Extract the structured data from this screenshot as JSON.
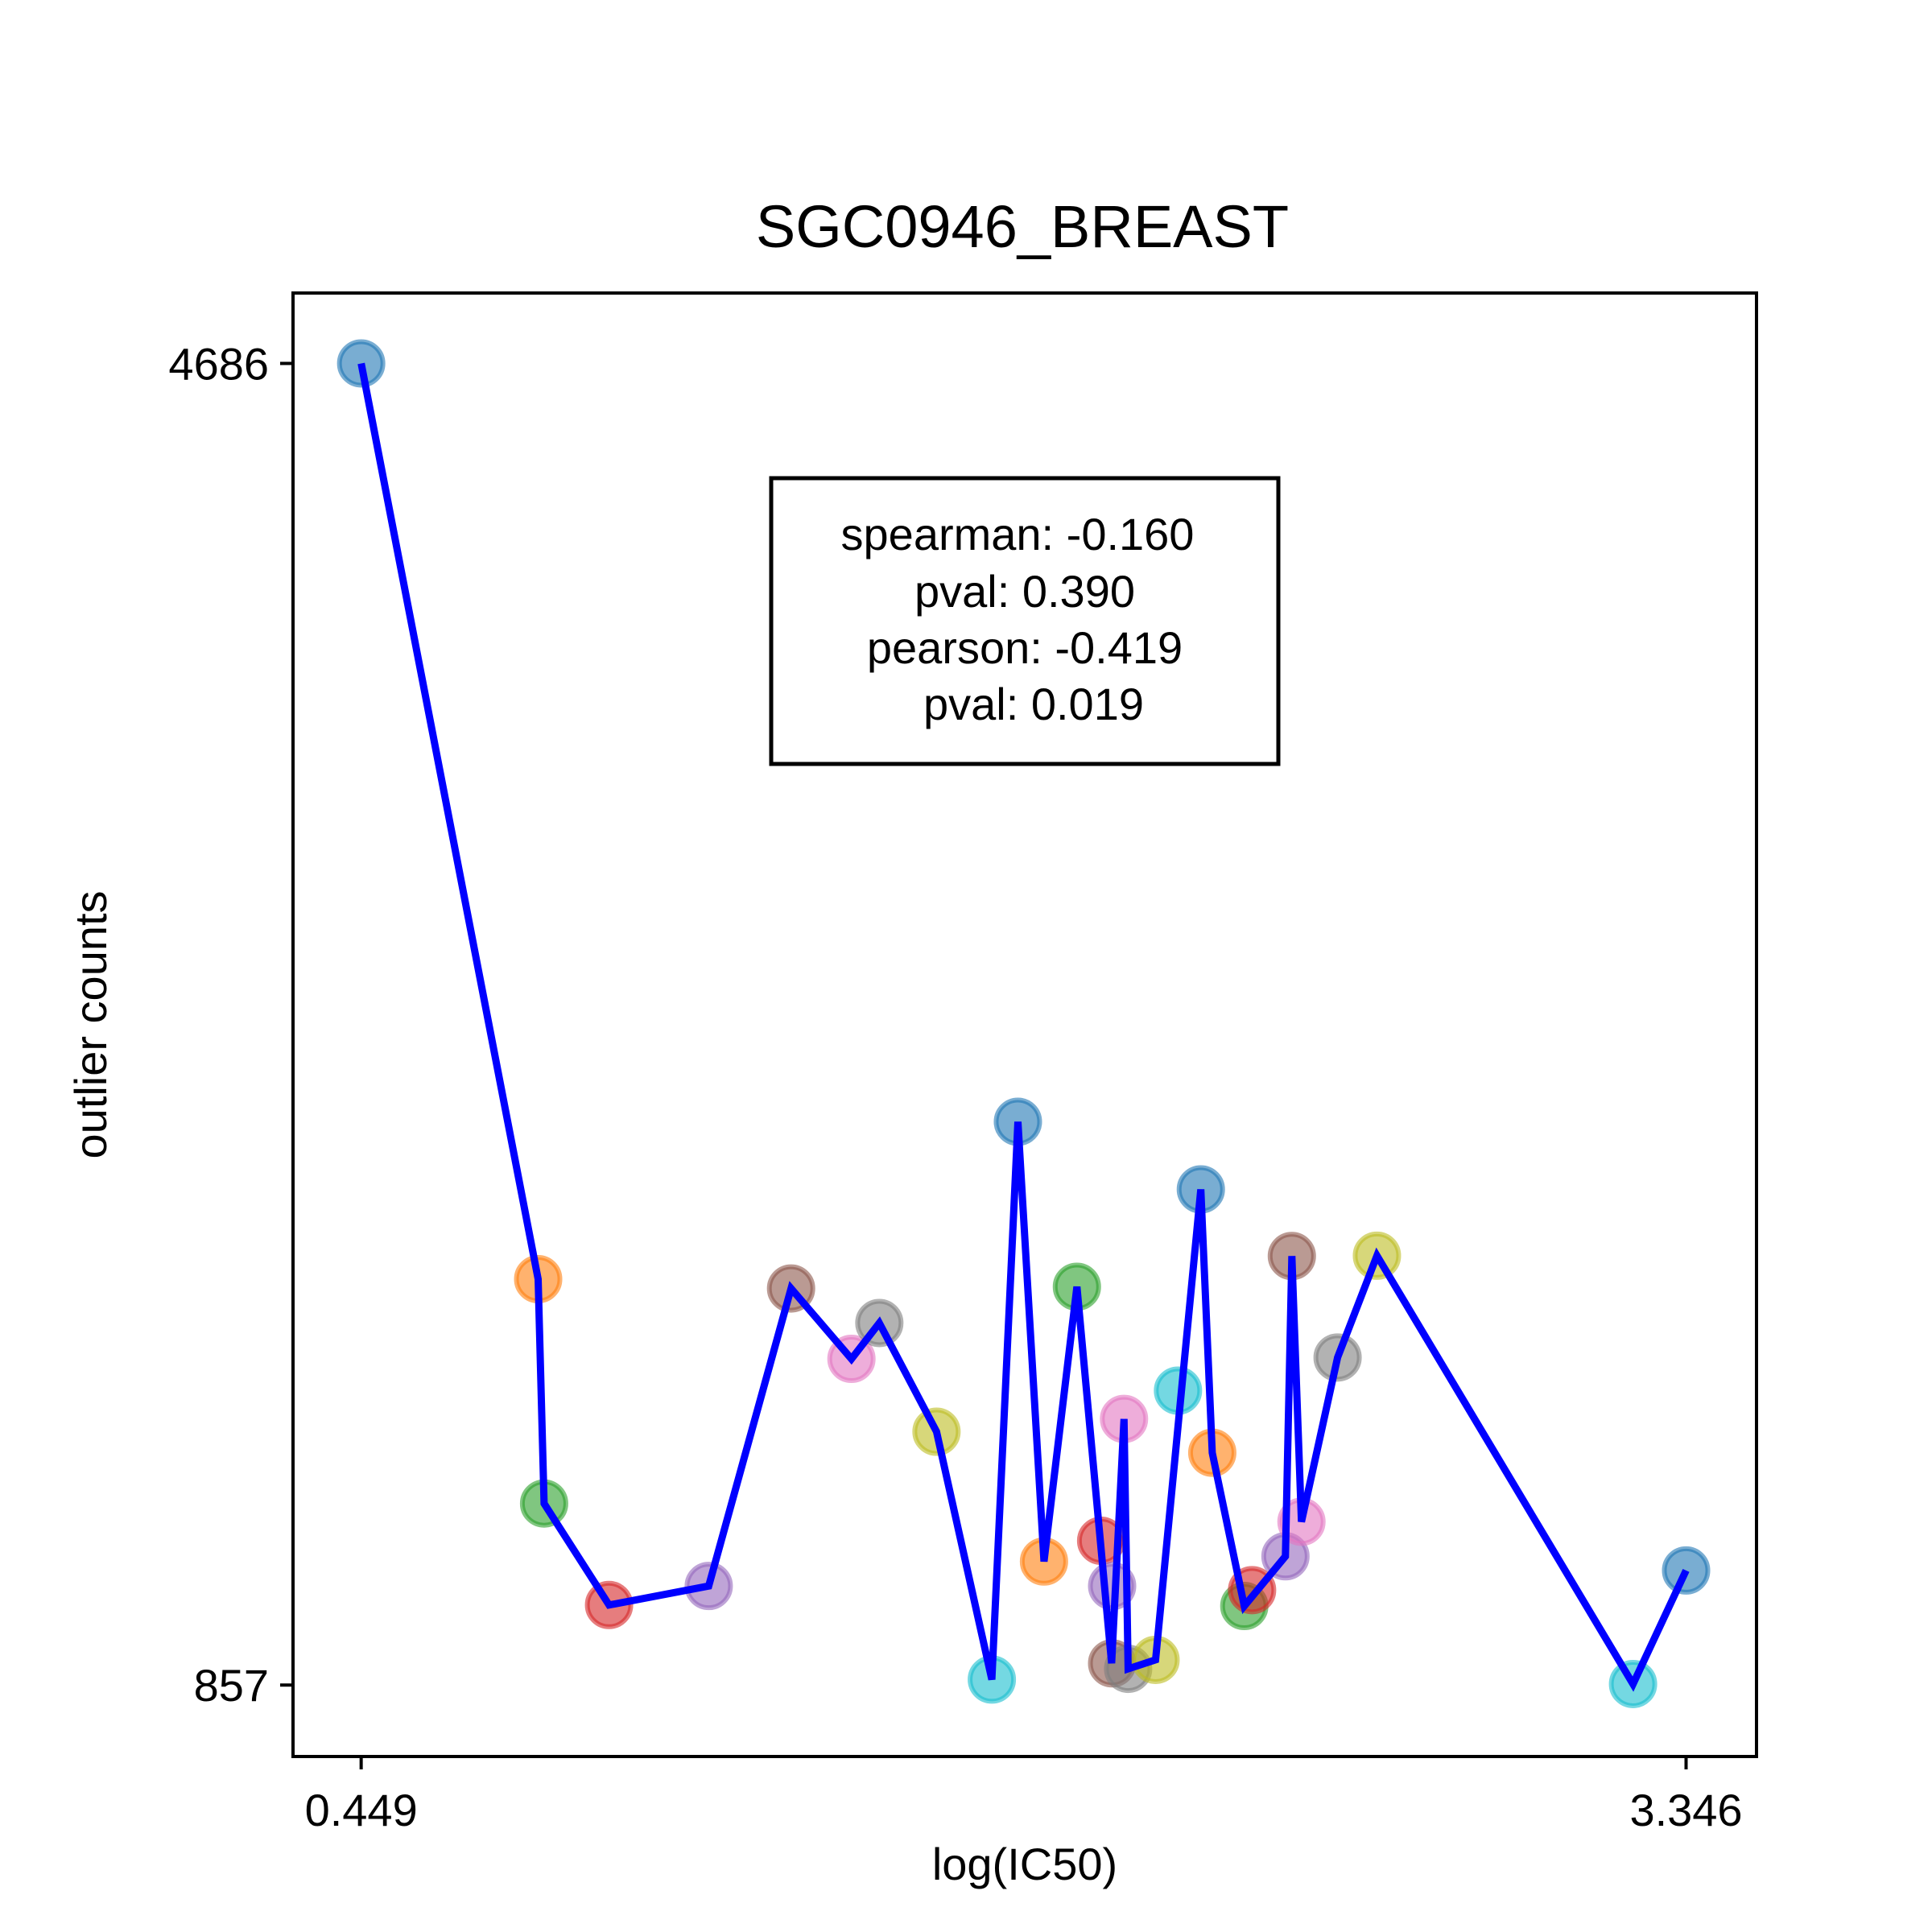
{
  "chart_data": {
    "type": "scatter",
    "title": "SGC0946_BREAST",
    "xlabel": "log(IC50)",
    "ylabel": "outlier counts",
    "xlim": [
      0.3,
      3.5
    ],
    "ylim": [
      650,
      4890
    ],
    "x_ticks": [
      0.449,
      3.346
    ],
    "x_tick_labels": [
      "0.449",
      "3.346"
    ],
    "y_ticks": [
      857,
      4686
    ],
    "y_tick_labels": [
      "857",
      "4686"
    ],
    "line_color": "#0000ff",
    "point_palette": [
      "#1f77b4",
      "#ff7f0e",
      "#2ca02c",
      "#d62728",
      "#9467bd",
      "#8c564b",
      "#e377c2",
      "#7f7f7f",
      "#bcbd22",
      "#17becf"
    ],
    "points": [
      {
        "x": 0.449,
        "y": 4686
      },
      {
        "x": 0.836,
        "y": 2033
      },
      {
        "x": 0.849,
        "y": 1383
      },
      {
        "x": 0.991,
        "y": 1089
      },
      {
        "x": 1.209,
        "y": 1144
      },
      {
        "x": 1.389,
        "y": 2006
      },
      {
        "x": 1.521,
        "y": 1802
      },
      {
        "x": 1.582,
        "y": 1906
      },
      {
        "x": 1.707,
        "y": 1591
      },
      {
        "x": 1.828,
        "y": 873
      },
      {
        "x": 1.885,
        "y": 2489
      },
      {
        "x": 1.942,
        "y": 1215
      },
      {
        "x": 2.014,
        "y": 2011
      },
      {
        "x": 2.067,
        "y": 1275
      },
      {
        "x": 2.091,
        "y": 1144
      },
      {
        "x": 2.091,
        "y": 920
      },
      {
        "x": 2.117,
        "y": 1628
      },
      {
        "x": 2.126,
        "y": 904
      },
      {
        "x": 2.186,
        "y": 930
      },
      {
        "x": 2.235,
        "y": 1710
      },
      {
        "x": 2.285,
        "y": 2293
      },
      {
        "x": 2.31,
        "y": 1530
      },
      {
        "x": 2.38,
        "y": 1086
      },
      {
        "x": 2.397,
        "y": 1132
      },
      {
        "x": 2.47,
        "y": 1230
      },
      {
        "x": 2.484,
        "y": 2100
      },
      {
        "x": 2.505,
        "y": 1330
      },
      {
        "x": 2.584,
        "y": 1806
      },
      {
        "x": 2.67,
        "y": 2101
      },
      {
        "x": 3.23,
        "y": 860
      },
      {
        "x": 3.346,
        "y": 1189
      }
    ],
    "line": [
      {
        "x": 0.449,
        "y": 4686
      },
      {
        "x": 0.836,
        "y": 2033
      },
      {
        "x": 0.849,
        "y": 1383
      },
      {
        "x": 0.991,
        "y": 1089
      },
      {
        "x": 1.209,
        "y": 1144
      },
      {
        "x": 1.389,
        "y": 2006
      },
      {
        "x": 1.521,
        "y": 1802
      },
      {
        "x": 1.582,
        "y": 1906
      },
      {
        "x": 1.707,
        "y": 1591
      },
      {
        "x": 1.828,
        "y": 873
      },
      {
        "x": 1.885,
        "y": 2489
      },
      {
        "x": 1.942,
        "y": 1215
      },
      {
        "x": 2.014,
        "y": 2011
      },
      {
        "x": 2.09,
        "y": 920
      },
      {
        "x": 2.117,
        "y": 1628
      },
      {
        "x": 2.126,
        "y": 904
      },
      {
        "x": 2.186,
        "y": 930
      },
      {
        "x": 2.285,
        "y": 2293
      },
      {
        "x": 2.31,
        "y": 1530
      },
      {
        "x": 2.38,
        "y": 1086
      },
      {
        "x": 2.47,
        "y": 1230
      },
      {
        "x": 2.484,
        "y": 2100
      },
      {
        "x": 2.505,
        "y": 1330
      },
      {
        "x": 2.584,
        "y": 1806
      },
      {
        "x": 2.67,
        "y": 2101
      },
      {
        "x": 3.23,
        "y": 860
      },
      {
        "x": 3.346,
        "y": 1189
      }
    ],
    "stats_text": [
      "spearman: -0.160",
      "pval: 0.390",
      "pearson: -0.419",
      "pval: 0.019"
    ]
  }
}
